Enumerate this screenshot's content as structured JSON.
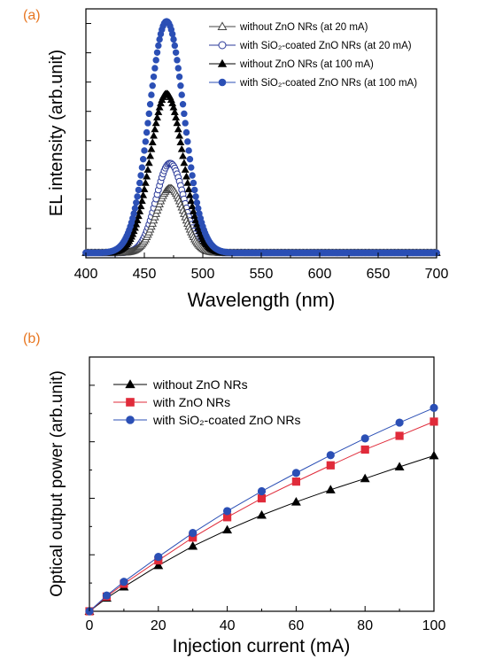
{
  "chart_data": [
    {
      "type": "scatter",
      "panel_label": "(a)",
      "xlabel": "Wavelength (nm)",
      "ylabel": "EL intensity (arb.unit)",
      "xlim": [
        400,
        700
      ],
      "ylim": [
        0,
        1
      ],
      "x_ticks": [
        "400",
        "450",
        "500",
        "550",
        "600",
        "650",
        "700"
      ],
      "y_tick_labels_shown": false,
      "legend_position": "top-right",
      "series": [
        {
          "name": "without ZnO NRs (at 20 mA)",
          "marker": "triangle-open",
          "color": "#444444",
          "peak_wavelength": 472,
          "peak_intensity": 0.26,
          "fwhm": 28,
          "baseline": 0.02
        },
        {
          "name": "with SiO₂-coated ZnO NRs (at 20 mA)",
          "marker": "circle-open",
          "color": "#2b3a99",
          "peak_wavelength": 472,
          "peak_intensity": 0.36,
          "fwhm": 28,
          "baseline": 0.02
        },
        {
          "name": "without ZnO NRs (at 100 mA)",
          "marker": "triangle-filled",
          "color": "#000000",
          "peak_wavelength": 469,
          "peak_intensity": 0.64,
          "fwhm": 33,
          "baseline": 0.02
        },
        {
          "name": "with SiO₂-coated ZnO NRs (at 100 mA)",
          "marker": "circle-filled",
          "color": "#2b4fb5",
          "peak_wavelength": 469,
          "peak_intensity": 0.93,
          "fwhm": 35,
          "baseline": 0.02
        }
      ]
    },
    {
      "type": "line",
      "panel_label": "(b)",
      "xlabel": "Injection current (mA)",
      "ylabel": "Optical output power (arb.unit)",
      "xlim": [
        0,
        100
      ],
      "ylim": [
        0,
        1
      ],
      "x_ticks": [
        "0",
        "20",
        "40",
        "60",
        "80",
        "100"
      ],
      "y_tick_labels_shown": false,
      "legend_position": "top-left",
      "x": [
        0,
        5,
        10,
        20,
        30,
        40,
        50,
        60,
        70,
        80,
        90,
        100
      ],
      "series": [
        {
          "name": "without ZnO NRs",
          "marker": "triangle-filled",
          "color": "#000000",
          "values": [
            0,
            0.052,
            0.096,
            0.18,
            0.256,
            0.32,
            0.378,
            0.43,
            0.478,
            0.522,
            0.568,
            0.612
          ]
        },
        {
          "name": "with ZnO NRs",
          "marker": "square-filled",
          "color": "#e02b3a",
          "values": [
            0,
            0.058,
            0.108,
            0.2,
            0.29,
            0.37,
            0.444,
            0.51,
            0.574,
            0.636,
            0.69,
            0.746
          ]
        },
        {
          "name": "with SiO₂-coated ZnO NRs",
          "marker": "circle-filled",
          "color": "#2b4fb5",
          "values": [
            0,
            0.062,
            0.116,
            0.214,
            0.308,
            0.394,
            0.472,
            0.544,
            0.614,
            0.68,
            0.742,
            0.8
          ]
        }
      ]
    }
  ]
}
